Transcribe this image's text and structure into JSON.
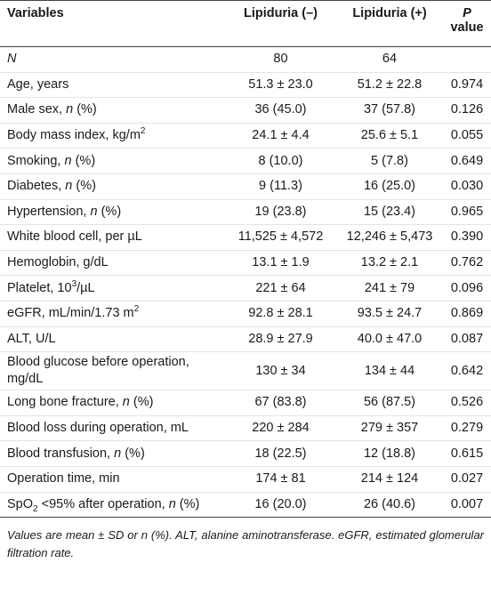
{
  "header": {
    "variables": "Variables",
    "neg": "Lipiduria (–)",
    "pos": "Lipiduria (+)",
    "p": "P",
    "p2": "value"
  },
  "rows": [
    {
      "label": [
        "N"
      ],
      "neg": "80",
      "pos": "64"
    },
    {
      "label": [
        "Age, years"
      ],
      "neg": "51.3 ± 23.0",
      "pos": "51.2 ± 22.8",
      "p": "0.974"
    },
    {
      "label": [
        "Male sex, ",
        "n",
        " (%)"
      ],
      "neg": "36 (45.0)",
      "pos": "37 (57.8)",
      "p": "0.126"
    },
    {
      "label": [
        "Body mass index, kg/m",
        "2"
      ],
      "neg": "24.1 ± 4.4",
      "pos": "25.6 ± 5.1",
      "p": "0.055"
    },
    {
      "label": [
        "Smoking, ",
        "n",
        " (%)"
      ],
      "neg": "8 (10.0)",
      "pos": "5 (7.8)",
      "p": "0.649"
    },
    {
      "label": [
        "Diabetes, ",
        "n",
        " (%)"
      ],
      "neg": "9 (11.3)",
      "pos": "16 (25.0)",
      "p": "0.030"
    },
    {
      "label": [
        "Hypertension, ",
        "n",
        " (%)"
      ],
      "neg": "19 (23.8)",
      "pos": "15 (23.4)",
      "p": "0.965"
    },
    {
      "label": [
        "White blood cell, per µL"
      ],
      "neg": "11,525 ± 4,572",
      "pos": "12,246 ± 5,473",
      "p": "0.390"
    },
    {
      "label": [
        "Hemoglobin, g/dL"
      ],
      "neg": "13.1 ± 1.9",
      "pos": "13.2 ± 2.1",
      "p": "0.762"
    },
    {
      "label": [
        "Platelet, 10",
        "3",
        "/µL"
      ],
      "neg": "221 ± 64",
      "pos": "241 ± 79",
      "p": "0.096"
    },
    {
      "label": [
        "eGFR, mL/min/1.73 m",
        "2"
      ],
      "neg": "92.8 ± 28.1",
      "pos": "93.5 ± 24.7",
      "p": "0.869"
    },
    {
      "label": [
        "ALT, U/L"
      ],
      "neg": "28.9 ± 27.9",
      "pos": "40.0 ± 47.0",
      "p": "0.087"
    },
    {
      "label": [
        "Blood glucose before operation, mg/dL"
      ],
      "neg": "130 ± 34",
      "pos": "134 ± 44",
      "p": "0.642"
    },
    {
      "label": [
        "Long bone fracture, ",
        "n",
        " (%)"
      ],
      "neg": "67 (83.8)",
      "pos": "56 (87.5)",
      "p": "0.526"
    },
    {
      "label": [
        "Blood loss during operation, mL"
      ],
      "neg": "220 ± 284",
      "pos": "279 ± 357",
      "p": "0.279"
    },
    {
      "label": [
        "Blood transfusion, ",
        "n",
        " (%)"
      ],
      "neg": "18 (22.5)",
      "pos": "12 (18.8)",
      "p": "0.615"
    },
    {
      "label": [
        "Operation time, min"
      ],
      "neg": "174 ± 81",
      "pos": "214 ± 124",
      "p": "0.027"
    },
    {
      "label": [
        "SpO",
        "2",
        " <95% after operation, ",
        "n",
        " (%)"
      ],
      "neg": "16 (20.0)",
      "pos": "26 (40.6)",
      "p": "0.007"
    }
  ],
  "footnote": "Values are mean ± SD or n (%). ALT, alanine aminotransferase. eGFR, estimated glomerular filtration rate."
}
